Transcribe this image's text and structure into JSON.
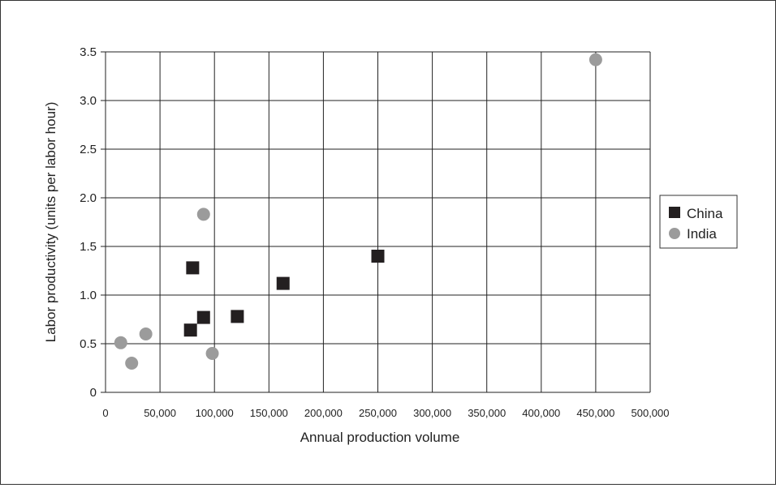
{
  "chart_data": {
    "type": "scatter",
    "title": "",
    "xlabel": "Annual production volume",
    "ylabel": "Labor productivity (units per labor hour)",
    "xlim": [
      0,
      500000
    ],
    "ylim": [
      0,
      3.5
    ],
    "x_ticks": [
      0,
      50000,
      100000,
      150000,
      200000,
      250000,
      300000,
      350000,
      400000,
      450000,
      500000
    ],
    "x_tick_labels": [
      "0",
      "50,000",
      "100,000",
      "150,000",
      "200,000",
      "250,000",
      "300,000",
      "350,000",
      "400,000",
      "450,000",
      "500,000"
    ],
    "y_ticks": [
      0,
      0.5,
      1.0,
      1.5,
      2.0,
      2.5,
      3.0,
      3.5
    ],
    "y_tick_labels": [
      "0",
      "0.5",
      "1.0",
      "1.5",
      "2.0",
      "2.5",
      "3.0",
      "3.5"
    ],
    "grid": true,
    "legend_position": "right",
    "series": [
      {
        "name": "China",
        "marker": "square",
        "color": "#231f20",
        "points": [
          {
            "x": 80000,
            "y": 1.28
          },
          {
            "x": 78000,
            "y": 0.64
          },
          {
            "x": 90000,
            "y": 0.77
          },
          {
            "x": 121000,
            "y": 0.78
          },
          {
            "x": 163000,
            "y": 1.12
          },
          {
            "x": 250000,
            "y": 1.4
          }
        ]
      },
      {
        "name": "India",
        "marker": "circle",
        "color": "#9b9b9b",
        "points": [
          {
            "x": 450000,
            "y": 3.42
          },
          {
            "x": 90000,
            "y": 1.83
          },
          {
            "x": 37000,
            "y": 0.6
          },
          {
            "x": 14000,
            "y": 0.51
          },
          {
            "x": 24000,
            "y": 0.3
          },
          {
            "x": 98000,
            "y": 0.4
          }
        ]
      }
    ]
  }
}
